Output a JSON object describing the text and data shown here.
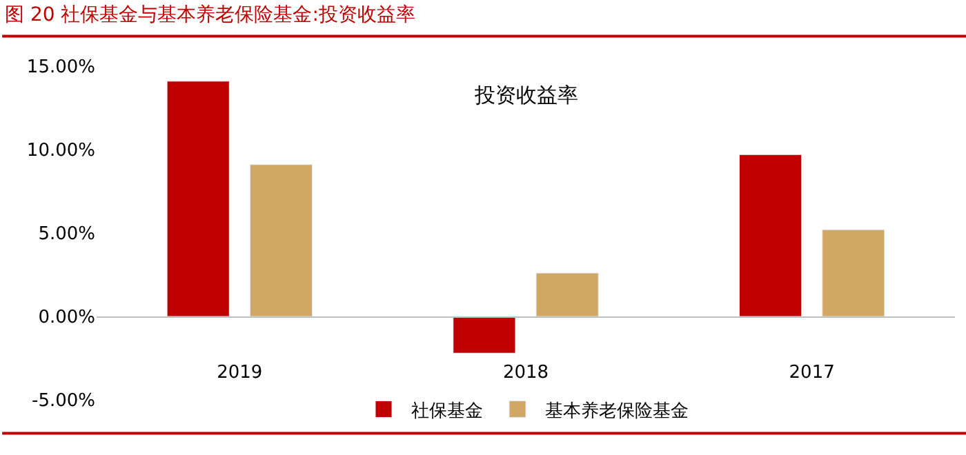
{
  "chart_data": {
    "type": "bar",
    "title": "图 20 社保基金与基本养老保险基金:投资收益率",
    "subtitle": "投资收益率",
    "categories": [
      "2019",
      "2018",
      "2017"
    ],
    "series": [
      {
        "name": "社保基金",
        "color": "#c00000",
        "values": [
          14.1,
          -2.2,
          9.7
        ]
      },
      {
        "name": "基本养老保险基金",
        "color": "#d0a764",
        "values": [
          9.1,
          2.6,
          5.2
        ]
      }
    ],
    "ylim": [
      -5,
      15
    ],
    "yticks": [
      {
        "value": -5,
        "label": "-5.00%"
      },
      {
        "value": 0,
        "label": "0.00%"
      },
      {
        "value": 5,
        "label": "5.00%"
      },
      {
        "value": 10,
        "label": "10.00%"
      },
      {
        "value": 15,
        "label": "15.00%"
      }
    ],
    "legend": "bottom"
  }
}
